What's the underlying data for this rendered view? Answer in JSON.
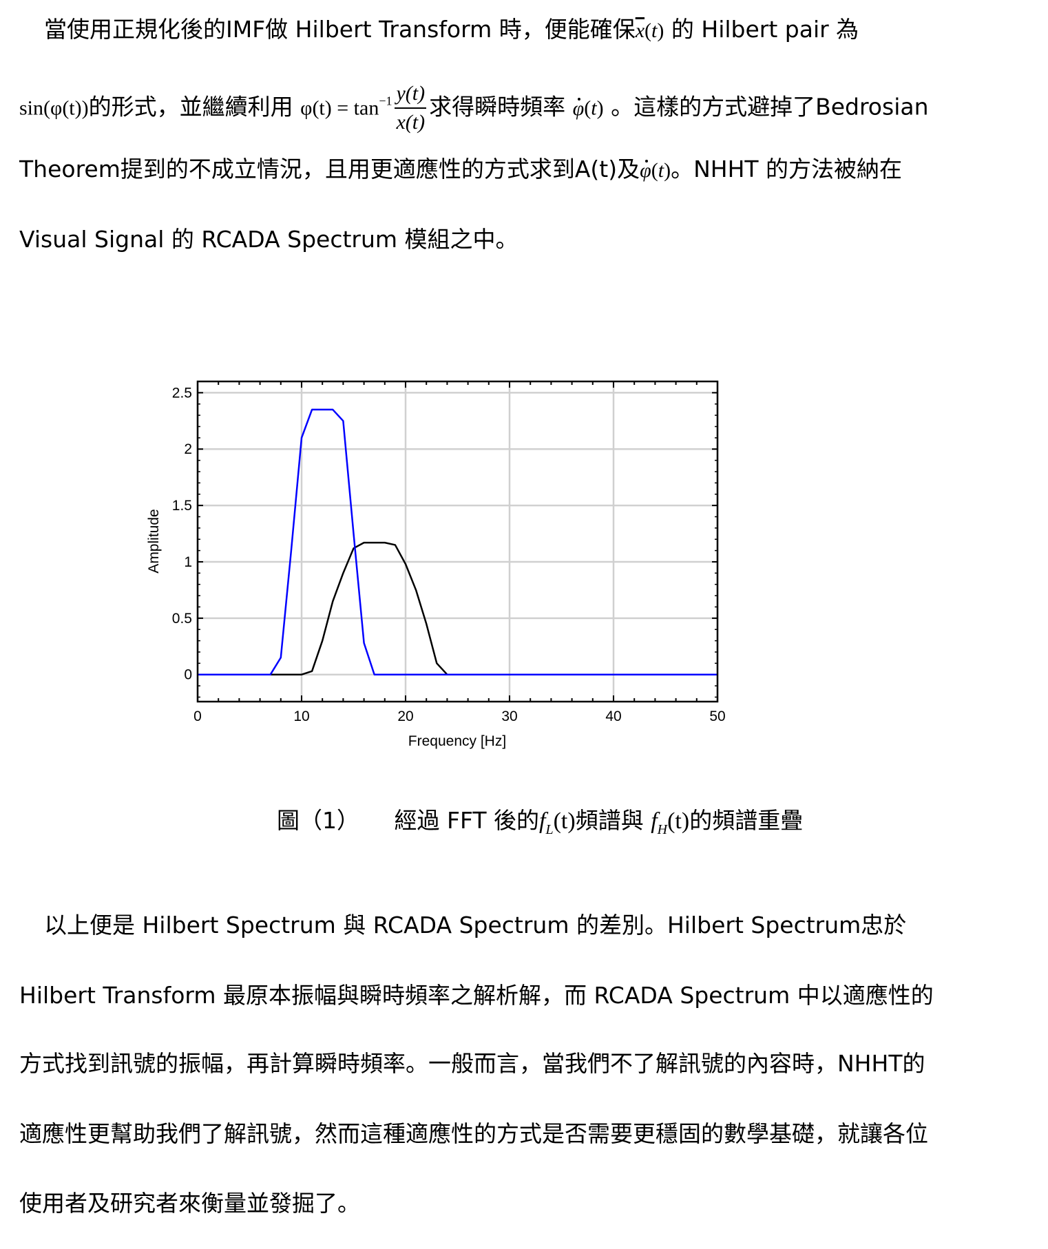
{
  "paragraph1": {
    "l1a": "當使用正規化後的IMF做 Hilbert Transform 時，便能確保",
    "l1m": "x",
    "l1b": "的 Hilbert pair 為",
    "l2m1": "sin(φ(t))",
    "l2a": "的形式，並繼續利用",
    "l2eq": "φ(t) = tan",
    "l2sup": "−1",
    "l2num": "y(t)",
    "l2den": "x(t)",
    "l2b": "求得瞬時頻率",
    "l2phi": "φ",
    "l2c": "。這樣的方式避掉了Bedrosian",
    "l3a": "Theorem提到的不成立情況，且用更適應性的方式求到A(t)及",
    "l3phi": "φ",
    "l3b": "。NHHT 的方法被納在",
    "l4": "Visual Signal 的 RCADA Spectrum 模組之中。"
  },
  "caption": {
    "label": "圖（1）",
    "a": "經過 FFT 後的",
    "fL": "f",
    "fLsub": "L",
    "b": "頻譜與",
    "fH": "f",
    "fHsub": "H",
    "c": "的頻譜重疊",
    "t": "(t)"
  },
  "paragraph2": {
    "l1": "以上便是 Hilbert Spectrum 與 RCADA Spectrum 的差別。Hilbert Spectrum忠於",
    "l2": "Hilbert Transform 最原本振幅與瞬時頻率之解析解，而 RCADA Spectrum 中以適應性的",
    "l3": "方式找到訊號的振幅，再計算瞬時頻率。一般而言，當我們不了解訊號的內容時，NHHT的",
    "l4": "適應性更幫助我們了解訊號，然而這種適應性的方式是否需要更穩固的數學基礎，就讓各位",
    "l5": "使用者及研究者來衡量並發掘了。"
  },
  "chart_data": {
    "type": "line",
    "title": "",
    "xlabel": "Frequency [Hz]",
    "ylabel": "Amplitude",
    "xlim": [
      0,
      50
    ],
    "ylim": [
      -0.24,
      2.6
    ],
    "xticks": [
      0,
      10,
      20,
      30,
      40,
      50
    ],
    "yticks": [
      0,
      0.5,
      1,
      1.5,
      2,
      2.5
    ],
    "ytick_labels": [
      "0",
      "0.5",
      "1",
      "1.5",
      "2",
      "2.5"
    ],
    "grid": true,
    "x": [
      0,
      1,
      2,
      3,
      4,
      5,
      6,
      7,
      8,
      9,
      10,
      11,
      12,
      13,
      14,
      15,
      16,
      17,
      18,
      19,
      20,
      21,
      22,
      23,
      24,
      25,
      26,
      27,
      28,
      29,
      30,
      31,
      32,
      33,
      34,
      35,
      36,
      37,
      38,
      39,
      40,
      41,
      42,
      43,
      44,
      45,
      46,
      47,
      48,
      49,
      50
    ],
    "series": [
      {
        "color": "#000000",
        "values": [
          0,
          0,
          0,
          0,
          0,
          0,
          0,
          0,
          0,
          0,
          0,
          0.03,
          0.3,
          0.65,
          0.9,
          1.12,
          1.17,
          1.17,
          1.17,
          1.15,
          0.98,
          0.75,
          0.45,
          0.1,
          0,
          0,
          0,
          0,
          0,
          0,
          0,
          0,
          0,
          0,
          0,
          0,
          0,
          0,
          0,
          0,
          0,
          0,
          0,
          0,
          0,
          0,
          0,
          0,
          0,
          0,
          0
        ]
      },
      {
        "color": "#0000ff",
        "values": [
          0,
          0,
          0,
          0,
          0,
          0,
          0,
          0,
          0.15,
          1.1,
          2.1,
          2.35,
          2.35,
          2.35,
          2.25,
          1.25,
          0.28,
          0,
          0,
          0,
          0,
          0,
          0,
          0,
          0,
          0,
          0,
          0,
          0,
          0,
          0,
          0,
          0,
          0,
          0,
          0,
          0,
          0,
          0,
          0,
          0,
          0,
          0,
          0,
          0,
          0,
          0,
          0,
          0,
          0,
          0
        ]
      }
    ]
  }
}
